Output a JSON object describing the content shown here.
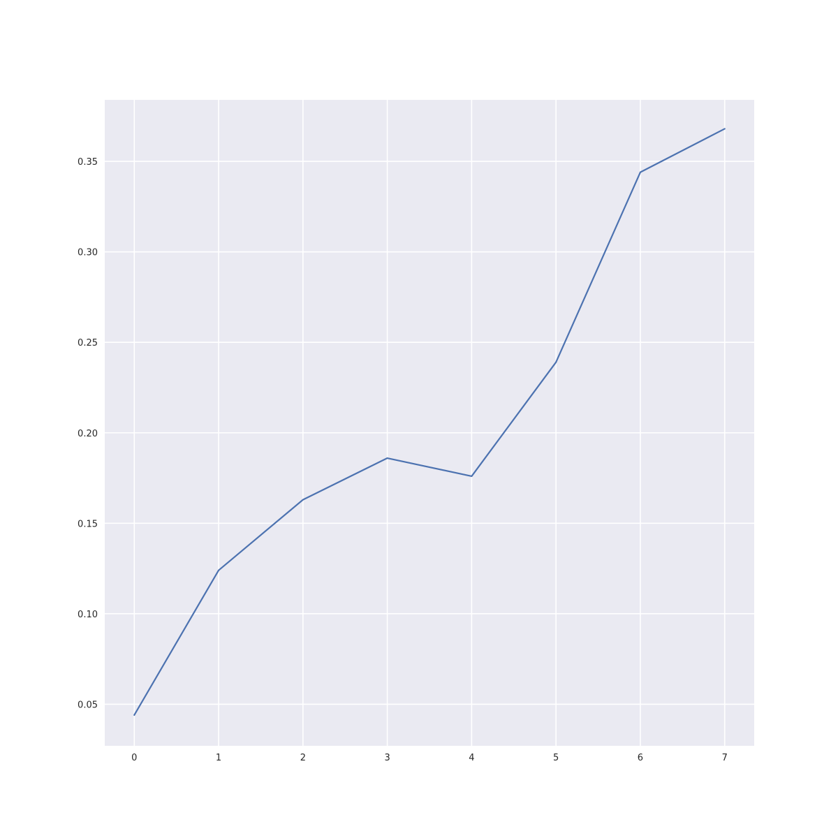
{
  "chart_data": {
    "type": "line",
    "title": "",
    "xlabel": "",
    "ylabel": "",
    "x": [
      0,
      1,
      2,
      3,
      4,
      5,
      6,
      7
    ],
    "series": [
      {
        "values": [
          0.044,
          0.124,
          0.163,
          0.186,
          0.176,
          0.239,
          0.344,
          0.368
        ],
        "color": "#4c72b0"
      }
    ],
    "xlim": [
      -0.35,
      7.35
    ],
    "ylim": [
      0.027,
      0.384
    ],
    "x_ticks": [
      0,
      1,
      2,
      3,
      4,
      5,
      6,
      7
    ],
    "y_ticks": [
      0.05,
      0.1,
      0.15,
      0.2,
      0.25,
      0.3,
      0.35
    ],
    "y_tick_labels": [
      "0.05",
      "0.10",
      "0.15",
      "0.20",
      "0.25",
      "0.30",
      "0.35"
    ],
    "grid": true,
    "style": {
      "plot_background": "#eaeaf2",
      "grid_color": "#ffffff",
      "line_color": "#4c72b0",
      "tick_label_color": "#262626"
    }
  }
}
